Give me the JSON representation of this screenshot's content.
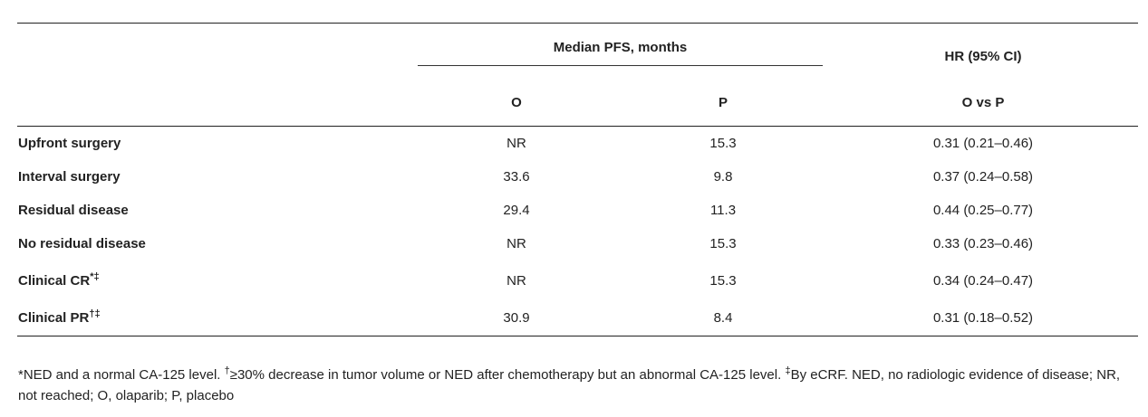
{
  "table": {
    "group_header": "Median PFS, months",
    "hr_header": "HR (95% CI)",
    "col_o": "O",
    "col_p": "P",
    "col_hr_sub": "O vs P",
    "rows": [
      {
        "label": "Upfront surgery",
        "sup": "",
        "o": "NR",
        "p": "15.3",
        "hr": "0.31 (0.21–0.46)"
      },
      {
        "label": "Interval surgery",
        "sup": "",
        "o": "33.6",
        "p": "9.8",
        "hr": "0.37 (0.24–0.58)"
      },
      {
        "label": "Residual disease",
        "sup": "",
        "o": "29.4",
        "p": "11.3",
        "hr": "0.44 (0.25–0.77)"
      },
      {
        "label": "No residual disease",
        "sup": "",
        "o": "NR",
        "p": "15.3",
        "hr": "0.33 (0.23–0.46)"
      },
      {
        "label": "Clinical CR",
        "sup": "*‡",
        "o": "NR",
        "p": "15.3",
        "hr": "0.34 (0.24–0.47)"
      },
      {
        "label": "Clinical PR",
        "sup": "†‡",
        "o": "30.9",
        "p": "8.4",
        "hr": "0.31 (0.18–0.52)"
      }
    ]
  },
  "footnote": {
    "part1": "*NED and a normal CA-125 level. ",
    "sup1": "†",
    "part2": "≥30% decrease in tumor volume or NED after chemotherapy but an abnormal CA-125 level. ",
    "sup2": "‡",
    "part3": "By eCRF. NED, no radiologic evidence of disease; NR, not reached; O, olaparib; P, placebo"
  }
}
